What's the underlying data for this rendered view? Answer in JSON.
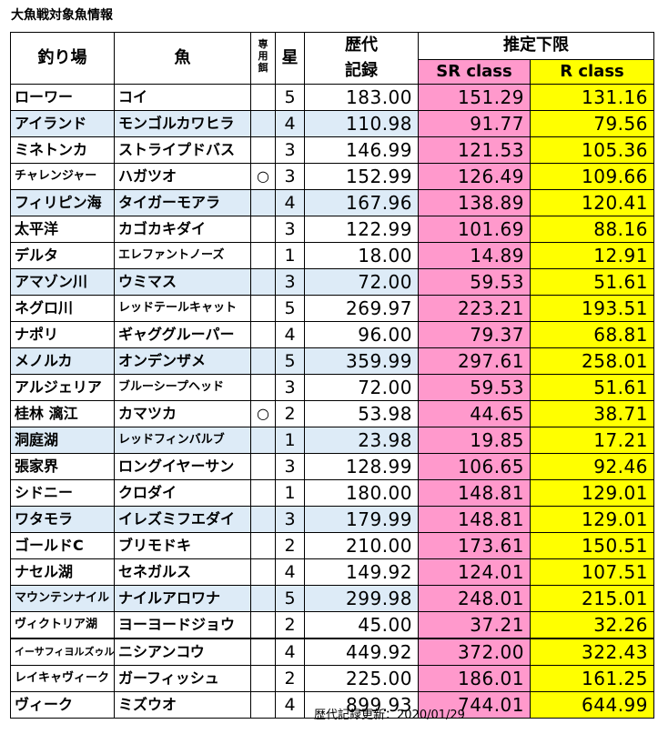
{
  "title": "大魚戦対象魚情報",
  "headers": {
    "place": "釣り場",
    "fish": "魚",
    "bait": "専用餌",
    "star": "星",
    "record_l1": "歴代",
    "record_l2": "記録",
    "lower": "推定下限",
    "sr": "SR class",
    "r": "R class"
  },
  "rows": [
    {
      "place": "ローワー",
      "fish": "コイ",
      "bait": "",
      "star": "5",
      "record": "183.00",
      "sr": "151.29",
      "r": "131.16"
    },
    {
      "place": "アイランド",
      "fish": "モンゴルカワヒラ",
      "bait": "",
      "star": "4",
      "record": "110.98",
      "sr": "91.77",
      "r": "79.56"
    },
    {
      "place": "ミネトンカ",
      "fish": "ストライプドバス",
      "bait": "",
      "star": "3",
      "record": "146.99",
      "sr": "121.53",
      "r": "105.36"
    },
    {
      "place": "チャレンジャー",
      "fish": "ハガツオ",
      "bait": "○",
      "star": "3",
      "record": "152.99",
      "sr": "126.49",
      "r": "109.66"
    },
    {
      "place": "フィリピン海",
      "fish": "タイガーモアラ",
      "bait": "",
      "star": "4",
      "record": "167.96",
      "sr": "138.89",
      "r": "120.41"
    },
    {
      "place": "太平洋",
      "fish": "カゴカキダイ",
      "bait": "",
      "star": "3",
      "record": "122.99",
      "sr": "101.69",
      "r": "88.16"
    },
    {
      "place": "デルタ",
      "fish": "エレファントノーズ",
      "bait": "",
      "star": "1",
      "record": "18.00",
      "sr": "14.89",
      "r": "12.91"
    },
    {
      "place": "アマゾン川",
      "fish": "ウミマス",
      "bait": "",
      "star": "3",
      "record": "72.00",
      "sr": "59.53",
      "r": "51.61"
    },
    {
      "place": "ネグロ川",
      "fish": "レッドテールキャット",
      "bait": "",
      "star": "5",
      "record": "269.97",
      "sr": "223.21",
      "r": "193.51"
    },
    {
      "place": "ナポリ",
      "fish": "ギャググルーパー",
      "bait": "",
      "star": "4",
      "record": "96.00",
      "sr": "79.37",
      "r": "68.81"
    },
    {
      "place": "メノルカ",
      "fish": "オンデンザメ",
      "bait": "",
      "star": "5",
      "record": "359.99",
      "sr": "297.61",
      "r": "258.01"
    },
    {
      "place": "アルジェリア",
      "fish": "ブルーシープヘッド",
      "bait": "",
      "star": "3",
      "record": "72.00",
      "sr": "59.53",
      "r": "51.61"
    },
    {
      "place": "桂林 漓江",
      "fish": "カマツカ",
      "bait": "○",
      "star": "2",
      "record": "53.98",
      "sr": "44.65",
      "r": "38.71"
    },
    {
      "place": "洞庭湖",
      "fish": "レッドフィンバルブ",
      "bait": "",
      "star": "1",
      "record": "23.98",
      "sr": "19.85",
      "r": "17.21"
    },
    {
      "place": "張家界",
      "fish": "ロングイヤーサン",
      "bait": "",
      "star": "3",
      "record": "128.99",
      "sr": "106.65",
      "r": "92.46"
    },
    {
      "place": "シドニー",
      "fish": "クロダイ",
      "bait": "",
      "star": "1",
      "record": "180.00",
      "sr": "148.81",
      "r": "129.01"
    },
    {
      "place": "ワタモラ",
      "fish": "イレズミフエダイ",
      "bait": "",
      "star": "3",
      "record": "179.99",
      "sr": "148.81",
      "r": "129.01"
    },
    {
      "place": "ゴールドC",
      "fish": "ブリモドキ",
      "bait": "",
      "star": "2",
      "record": "210.00",
      "sr": "173.61",
      "r": "150.51"
    },
    {
      "place": "ナセル湖",
      "fish": "セネガルス",
      "bait": "",
      "star": "4",
      "record": "149.92",
      "sr": "124.01",
      "r": "107.51"
    },
    {
      "place": "マウンテンナイル",
      "fish": "ナイルアロワナ",
      "bait": "",
      "star": "5",
      "record": "299.98",
      "sr": "248.01",
      "r": "215.01"
    },
    {
      "place": "ヴィクトリア湖",
      "fish": "ヨーヨードジョウ",
      "bait": "",
      "star": "2",
      "record": "45.00",
      "sr": "37.21",
      "r": "32.26"
    },
    {
      "place": "イーサフィヨルズゥル",
      "fish": "ニシアンコウ",
      "bait": "",
      "star": "4",
      "record": "449.92",
      "sr": "372.00",
      "r": "322.43"
    },
    {
      "place": "レイキャヴィーク",
      "fish": "ガーフィッシュ",
      "bait": "",
      "star": "2",
      "record": "225.00",
      "sr": "186.01",
      "r": "161.25"
    },
    {
      "place": "ヴィーク",
      "fish": "ミズウオ",
      "bait": "",
      "star": "4",
      "record": "899.93",
      "sr": "744.01",
      "r": "644.99"
    }
  ],
  "footer": "歴代記録更新：2020/01/29"
}
